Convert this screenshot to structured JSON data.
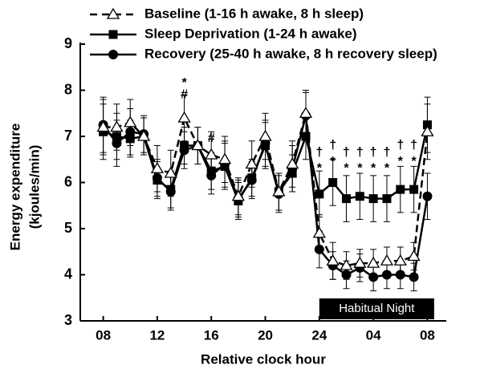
{
  "chart_data": {
    "type": "line",
    "x_label": "Relative clock hour",
    "y_label": [
      "Energy expenditure",
      "(kjoules/min)"
    ],
    "x": [
      8,
      9,
      10,
      11,
      12,
      13,
      14,
      15,
      16,
      17,
      18,
      19,
      20,
      21,
      22,
      23,
      24,
      25,
      26,
      27,
      28,
      29,
      30,
      31,
      32
    ],
    "xlim": [
      6.3,
      33.4
    ],
    "xticks": [
      {
        "value": 8,
        "label": "08"
      },
      12,
      16,
      20,
      24,
      {
        "value": 28,
        "label": "04"
      },
      {
        "value": 32,
        "label": "08"
      }
    ],
    "ylim": [
      3,
      9
    ],
    "yticks": [
      3,
      4,
      5,
      6,
      7,
      8,
      9
    ],
    "series": [
      {
        "name": "Baseline (1-16 h awake, 8 h sleep)",
        "color": "#000000",
        "marker": "triangle-open",
        "dashed": true,
        "values": [
          7.2,
          7.2,
          7.3,
          7.0,
          6.3,
          6.2,
          7.4,
          6.8,
          6.6,
          6.5,
          5.7,
          6.4,
          7.0,
          5.8,
          6.4,
          7.5,
          4.9,
          4.3,
          4.2,
          4.25,
          4.25,
          4.3,
          4.3,
          4.4,
          7.1
        ],
        "errors": [
          0.6,
          0.5,
          0.5,
          0.4,
          0.5,
          0.5,
          0.5,
          0.4,
          0.5,
          0.5,
          0.4,
          0.5,
          0.5,
          0.4,
          0.5,
          0.5,
          0.4,
          0.4,
          0.3,
          0.3,
          0.3,
          0.3,
          0.3,
          0.3,
          0.6
        ]
      },
      {
        "name": "Sleep Deprivation (1-24 h awake)",
        "color": "#000000",
        "marker": "square",
        "dashed": false,
        "values": [
          7.1,
          7.0,
          6.95,
          7.0,
          6.05,
          5.85,
          6.8,
          6.8,
          6.25,
          6.35,
          5.6,
          6.1,
          6.8,
          5.8,
          6.2,
          7.0,
          5.75,
          6.0,
          5.65,
          5.7,
          5.65,
          5.65,
          5.85,
          5.85,
          7.25
        ],
        "errors": [
          0.6,
          0.5,
          0.4,
          0.4,
          0.4,
          0.4,
          0.4,
          0.4,
          0.4,
          0.5,
          0.4,
          0.4,
          0.5,
          0.4,
          0.4,
          0.5,
          0.5,
          0.5,
          0.5,
          0.5,
          0.5,
          0.5,
          0.5,
          0.5,
          0.6
        ]
      },
      {
        "name": "Recovery (25-40 h awake, 8 h recovery sleep)",
        "color": "#000000",
        "marker": "circle",
        "dashed": false,
        "values": [
          7.25,
          6.85,
          7.1,
          7.05,
          6.1,
          5.8,
          6.7,
          6.8,
          6.15,
          6.4,
          5.65,
          6.05,
          6.85,
          5.75,
          6.3,
          7.45,
          4.55,
          4.2,
          4.0,
          4.15,
          3.95,
          4.0,
          4.0,
          3.95,
          5.7
        ],
        "errors": [
          0.6,
          0.5,
          0.5,
          0.4,
          0.4,
          0.4,
          0.4,
          0.4,
          0.4,
          0.5,
          0.4,
          0.4,
          0.5,
          0.4,
          0.5,
          0.5,
          0.4,
          0.3,
          0.3,
          0.3,
          0.3,
          0.3,
          0.3,
          0.3,
          0.5
        ]
      }
    ],
    "annotations": [
      {
        "text": "*",
        "x": 14,
        "y": 8.15
      },
      {
        "text": "#",
        "x": 14,
        "y": 7.9
      },
      {
        "text": "#",
        "x": 16,
        "y": 6.95
      },
      {
        "text": "†",
        "x": 24,
        "y": 6.65
      },
      {
        "text": "†",
        "x": 25,
        "y": 6.8
      },
      {
        "text": "†",
        "x": 26,
        "y": 6.65
      },
      {
        "text": "†",
        "x": 27,
        "y": 6.65
      },
      {
        "text": "†",
        "x": 28,
        "y": 6.65
      },
      {
        "text": "†",
        "x": 29,
        "y": 6.65
      },
      {
        "text": "†",
        "x": 30,
        "y": 6.8
      },
      {
        "text": "†",
        "x": 31,
        "y": 6.8
      },
      {
        "text": "*",
        "x": 24,
        "y": 6.3
      },
      {
        "text": "*",
        "x": 25,
        "y": 6.45
      },
      {
        "text": "*",
        "x": 26,
        "y": 6.3
      },
      {
        "text": "*",
        "x": 27,
        "y": 6.3
      },
      {
        "text": "*",
        "x": 28,
        "y": 6.3
      },
      {
        "text": "*",
        "x": 29,
        "y": 6.3
      },
      {
        "text": "*",
        "x": 30,
        "y": 6.45
      },
      {
        "text": "*",
        "x": 31,
        "y": 6.45
      }
    ],
    "band_label": {
      "text": "Habitual Night",
      "x": [
        24,
        32.5
      ]
    }
  }
}
